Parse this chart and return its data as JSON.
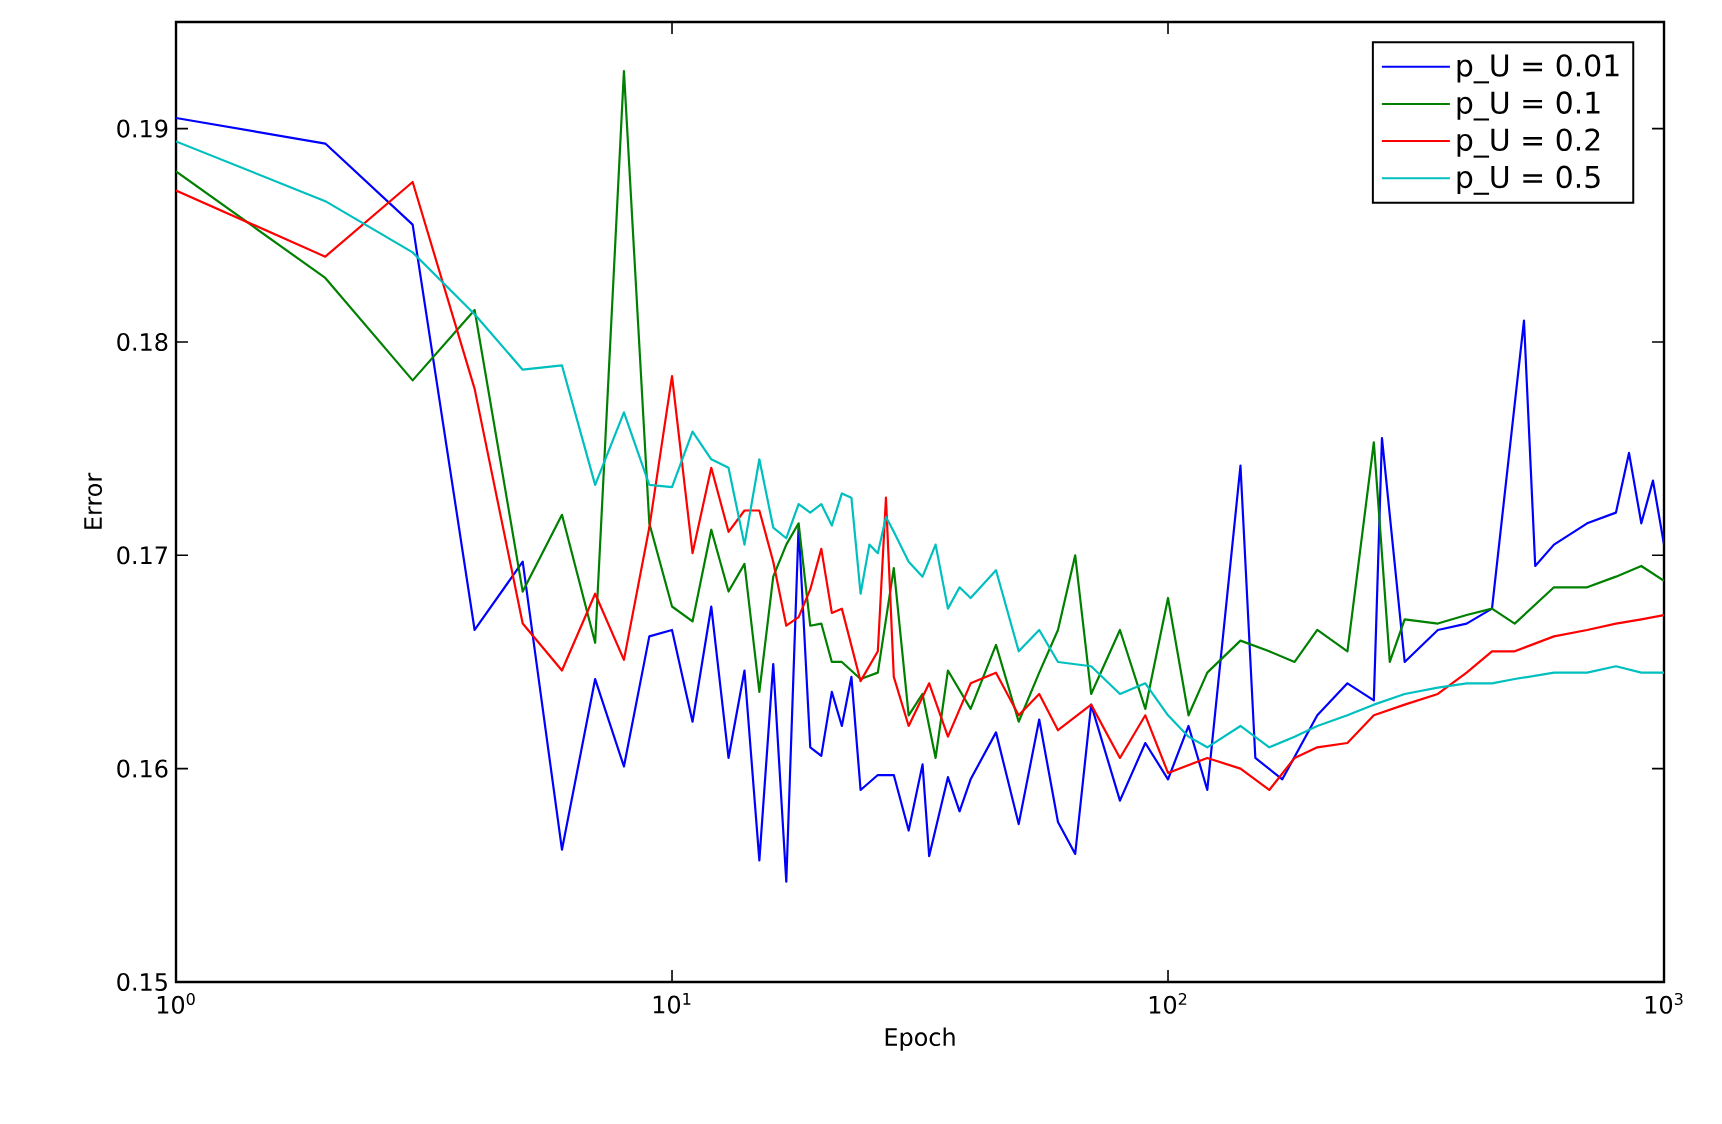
{
  "chart_data": {
    "type": "line",
    "xlabel": "Epoch",
    "ylabel": "Error",
    "log": "x",
    "xlim": [
      1,
      1000
    ],
    "xticks": [
      {
        "value": 1,
        "label": "10$^{0}$"
      },
      {
        "value": 10,
        "label": "10$^{1}$"
      },
      {
        "value": 100,
        "label": "10$^{2}$"
      },
      {
        "value": 1000,
        "label": "10$^{3}$"
      }
    ],
    "ylim": [
      0.15,
      0.195
    ],
    "yticks": [
      0.15,
      0.16,
      0.17,
      0.18,
      0.19
    ],
    "grid": false,
    "legend": "top right",
    "marker": "none",
    "line_style": "solid",
    "series": [
      {
        "name": "p_U = 0.01",
        "color": "#0000ff",
        "x": [
          1,
          2,
          3,
          4,
          5,
          6,
          7,
          8,
          9,
          10,
          11,
          12,
          13,
          14,
          15,
          16,
          17,
          18,
          19,
          20,
          21,
          22,
          23,
          24,
          26,
          28,
          30,
          32,
          33,
          36,
          38,
          40,
          45,
          50,
          55,
          60,
          65,
          70,
          80,
          90,
          100,
          110,
          120,
          140,
          150,
          170,
          200,
          230,
          260,
          270,
          300,
          350,
          400,
          450,
          522,
          550,
          600,
          700,
          800,
          850,
          900,
          950,
          1000
        ],
        "values": [
          0.1905,
          0.1893,
          0.1855,
          0.1665,
          0.1697,
          0.1562,
          0.1642,
          0.1601,
          0.1662,
          0.1665,
          0.1622,
          0.1676,
          0.1605,
          0.1646,
          0.1557,
          0.1649,
          0.1547,
          0.1714,
          0.161,
          0.1606,
          0.1636,
          0.162,
          0.1643,
          0.159,
          0.1597,
          0.1597,
          0.1571,
          0.1602,
          0.1559,
          0.1596,
          0.158,
          0.1595,
          0.1617,
          0.1574,
          0.1623,
          0.1575,
          0.156,
          0.163,
          0.1585,
          0.1612,
          0.1595,
          0.162,
          0.159,
          0.1742,
          0.1605,
          0.1595,
          0.1625,
          0.164,
          0.1632,
          0.1755,
          0.165,
          0.1665,
          0.1668,
          0.1675,
          0.181,
          0.1695,
          0.1705,
          0.1715,
          0.172,
          0.1748,
          0.1715,
          0.1735,
          0.1705
        ]
      },
      {
        "name": "p_U = 0.1",
        "color": "#008000",
        "x": [
          1,
          2,
          3,
          4,
          5,
          6,
          7,
          8,
          9,
          10,
          11,
          12,
          13,
          14,
          15,
          16,
          17,
          18,
          19,
          20,
          21,
          22,
          24,
          26,
          28,
          30,
          32,
          34,
          36,
          40,
          45,
          50,
          55,
          60,
          65,
          70,
          80,
          90,
          100,
          110,
          120,
          140,
          160,
          180,
          200,
          230,
          260,
          280,
          300,
          350,
          400,
          450,
          500,
          600,
          700,
          800,
          900,
          1000
        ],
        "values": [
          0.188,
          0.183,
          0.1782,
          0.1815,
          0.1683,
          0.1719,
          0.1659,
          0.1927,
          0.1715,
          0.1676,
          0.1669,
          0.1712,
          0.1683,
          0.1696,
          0.1636,
          0.169,
          0.1705,
          0.1715,
          0.1667,
          0.1668,
          0.165,
          0.165,
          0.1642,
          0.1645,
          0.1694,
          0.1625,
          0.1635,
          0.1605,
          0.1646,
          0.1628,
          0.1658,
          0.1622,
          0.1645,
          0.1665,
          0.17,
          0.1635,
          0.1665,
          0.1628,
          0.168,
          0.1625,
          0.1645,
          0.166,
          0.1655,
          0.165,
          0.1665,
          0.1655,
          0.1753,
          0.165,
          0.167,
          0.1668,
          0.1672,
          0.1675,
          0.1668,
          0.1685,
          0.1685,
          0.169,
          0.1695,
          0.1688
        ]
      },
      {
        "name": "p_U = 0.2",
        "color": "#ff0000",
        "x": [
          1,
          2,
          3,
          4,
          5,
          6,
          7,
          8,
          9,
          10,
          11,
          12,
          13,
          14,
          15,
          16,
          17,
          18,
          19,
          20,
          21,
          22,
          24,
          26,
          27,
          28,
          30,
          33,
          36,
          40,
          45,
          50,
          55,
          60,
          70,
          80,
          90,
          100,
          120,
          140,
          160,
          180,
          200,
          230,
          260,
          300,
          350,
          400,
          450,
          500,
          600,
          700,
          800,
          900,
          1000
        ],
        "values": [
          0.1871,
          0.184,
          0.1875,
          0.1778,
          0.1668,
          0.1646,
          0.1682,
          0.1651,
          0.1713,
          0.1784,
          0.1701,
          0.1741,
          0.1711,
          0.1721,
          0.1721,
          0.1697,
          0.1667,
          0.1671,
          0.1684,
          0.1703,
          0.1673,
          0.1675,
          0.1641,
          0.1655,
          0.1727,
          0.1643,
          0.162,
          0.164,
          0.1615,
          0.164,
          0.1645,
          0.1625,
          0.1635,
          0.1618,
          0.163,
          0.1605,
          0.1625,
          0.1598,
          0.1605,
          0.16,
          0.159,
          0.1605,
          0.161,
          0.1612,
          0.1625,
          0.163,
          0.1635,
          0.1645,
          0.1655,
          0.1655,
          0.1662,
          0.1665,
          0.1668,
          0.167,
          0.1672
        ]
      },
      {
        "name": "p_U = 0.5",
        "color": "#00bfbf",
        "x": [
          1,
          2,
          3,
          4,
          5,
          6,
          7,
          8,
          9,
          10,
          11,
          12,
          13,
          14,
          15,
          16,
          17,
          18,
          19,
          20,
          21,
          22,
          23,
          24,
          25,
          26,
          27,
          28,
          30,
          32,
          34,
          36,
          38,
          40,
          45,
          50,
          55,
          60,
          70,
          80,
          90,
          100,
          110,
          120,
          140,
          160,
          180,
          200,
          230,
          260,
          300,
          350,
          400,
          450,
          500,
          600,
          700,
          800,
          900,
          1000
        ],
        "values": [
          0.1894,
          0.1866,
          0.1842,
          0.1813,
          0.1787,
          0.1789,
          0.1733,
          0.1767,
          0.1733,
          0.1732,
          0.1758,
          0.1745,
          0.1741,
          0.1705,
          0.1745,
          0.1713,
          0.1708,
          0.1724,
          0.172,
          0.1724,
          0.1714,
          0.1729,
          0.1727,
          0.1682,
          0.1705,
          0.1701,
          0.1718,
          0.1711,
          0.1697,
          0.169,
          0.1705,
          0.1675,
          0.1685,
          0.168,
          0.1693,
          0.1655,
          0.1665,
          0.165,
          0.1648,
          0.1635,
          0.164,
          0.1625,
          0.1615,
          0.161,
          0.162,
          0.161,
          0.1615,
          0.162,
          0.1625,
          0.163,
          0.1635,
          0.1638,
          0.164,
          0.164,
          0.1642,
          0.1645,
          0.1645,
          0.1648,
          0.1645,
          0.1645
        ]
      }
    ]
  }
}
